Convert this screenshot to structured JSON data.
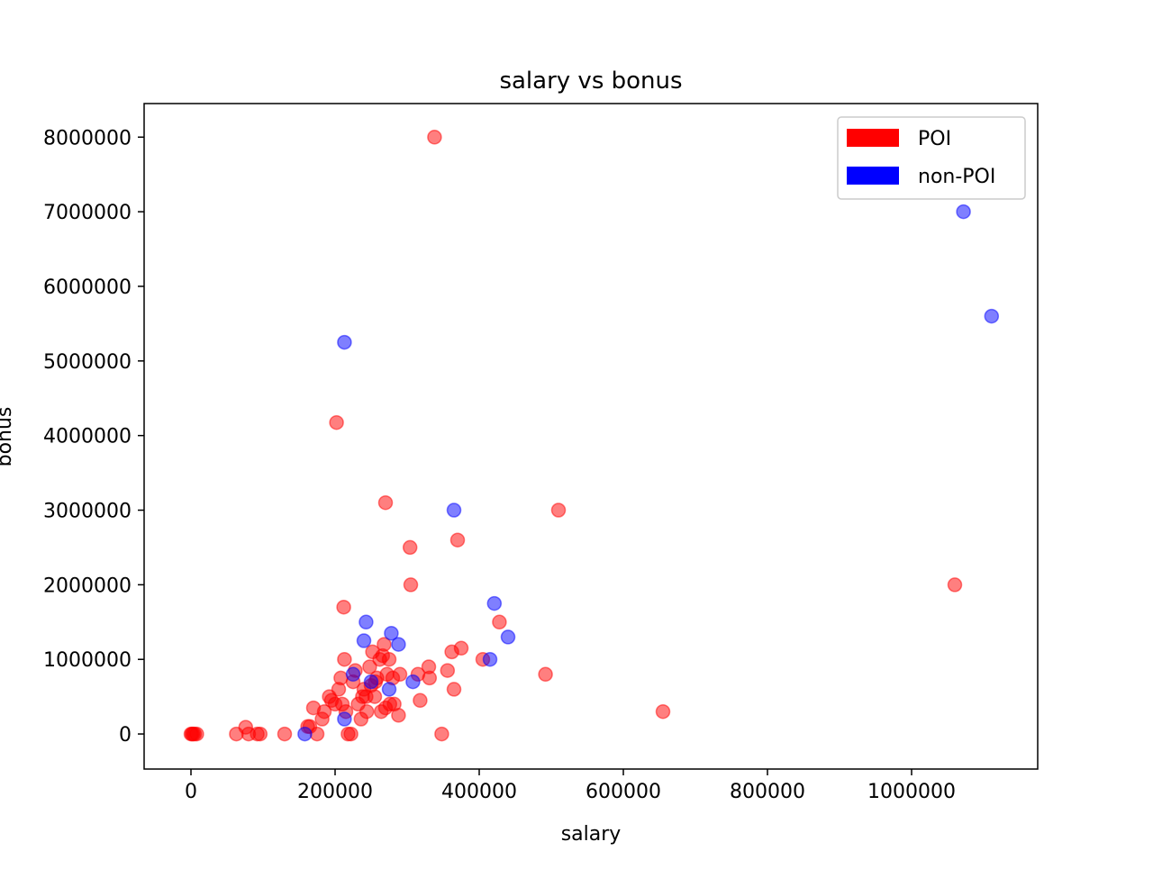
{
  "chart_data": {
    "type": "scatter",
    "title": "salary vs bonus",
    "xlabel": "salary",
    "ylabel": "bonus",
    "xlim": [
      -65000,
      1175000
    ],
    "ylim": [
      -470000,
      8450000
    ],
    "xticks": [
      0,
      200000,
      400000,
      600000,
      800000,
      1000000
    ],
    "xtick_labels": [
      "0",
      "200000",
      "400000",
      "600000",
      "800000",
      "1000000"
    ],
    "yticks": [
      0,
      1000000,
      2000000,
      3000000,
      4000000,
      5000000,
      6000000,
      7000000,
      8000000
    ],
    "ytick_labels": [
      "0",
      "1000000",
      "2000000",
      "3000000",
      "4000000",
      "5000000",
      "6000000",
      "7000000",
      "8000000"
    ],
    "grid": false,
    "legend_position": "top-right",
    "series": [
      {
        "name": "POI",
        "color": "#ff0000",
        "points": [
          [
            0,
            0
          ],
          [
            1500,
            0
          ],
          [
            3000,
            0
          ],
          [
            5000,
            0
          ],
          [
            8000,
            0
          ],
          [
            63000,
            0
          ],
          [
            76000,
            90000
          ],
          [
            80000,
            0
          ],
          [
            92000,
            0
          ],
          [
            96000,
            0
          ],
          [
            130000,
            0
          ],
          [
            162000,
            100000
          ],
          [
            170000,
            350000
          ],
          [
            175000,
            0
          ],
          [
            182000,
            200000
          ],
          [
            185000,
            300000
          ],
          [
            192000,
            500000
          ],
          [
            200000,
            400000
          ],
          [
            205000,
            600000
          ],
          [
            208000,
            750000
          ],
          [
            210000,
            400000
          ],
          [
            213000,
            1000000
          ],
          [
            215000,
            300000
          ],
          [
            218000,
            0
          ],
          [
            222000,
            0
          ],
          [
            225000,
            700000
          ],
          [
            228000,
            850000
          ],
          [
            232000,
            400000
          ],
          [
            236000,
            200000
          ],
          [
            238000,
            500000
          ],
          [
            240000,
            600000
          ],
          [
            244000,
            300000
          ],
          [
            248000,
            900000
          ],
          [
            250000,
            650000
          ],
          [
            252000,
            1100000
          ],
          [
            255000,
            500000
          ],
          [
            258000,
            750000
          ],
          [
            262000,
            1000000
          ],
          [
            264000,
            300000
          ],
          [
            266000,
            1050000
          ],
          [
            268000,
            1200000
          ],
          [
            270000,
            350000
          ],
          [
            272000,
            800000
          ],
          [
            275000,
            1000000
          ],
          [
            276000,
            400000
          ],
          [
            280000,
            750000
          ],
          [
            288000,
            250000
          ],
          [
            290000,
            800000
          ],
          [
            304000,
            2500000
          ],
          [
            305000,
            2000000
          ],
          [
            315000,
            800000
          ],
          [
            318000,
            450000
          ],
          [
            330000,
            900000
          ],
          [
            331000,
            750000
          ],
          [
            338000,
            8000000
          ],
          [
            348000,
            0
          ],
          [
            356000,
            850000
          ],
          [
            362000,
            1100000
          ],
          [
            365000,
            600000
          ],
          [
            370000,
            2600000
          ],
          [
            375000,
            1150000
          ],
          [
            405000,
            1000000
          ],
          [
            428000,
            1500000
          ],
          [
            492000,
            800000
          ],
          [
            510000,
            3000000
          ],
          [
            655000,
            300000
          ],
          [
            1060000,
            2000000
          ],
          [
            212000,
            1700000
          ],
          [
            270000,
            3100000
          ],
          [
            202000,
            4175000
          ],
          [
            165000,
            100000
          ],
          [
            195000,
            450000
          ],
          [
            243000,
            500000
          ],
          [
            256000,
            700000
          ],
          [
            282000,
            400000
          ]
        ]
      },
      {
        "name": "non-POI",
        "color": "#0000ff",
        "points": [
          [
            158000,
            0
          ],
          [
            213000,
            200000
          ],
          [
            213000,
            5250000
          ],
          [
            225000,
            800000
          ],
          [
            240000,
            1250000
          ],
          [
            243000,
            1500000
          ],
          [
            250000,
            700000
          ],
          [
            275000,
            600000
          ],
          [
            278000,
            1350000
          ],
          [
            288000,
            1200000
          ],
          [
            308000,
            700000
          ],
          [
            365000,
            3000000
          ],
          [
            415000,
            1000000
          ],
          [
            421000,
            1750000
          ],
          [
            440000,
            1300000
          ],
          [
            1072000,
            7000000
          ],
          [
            1111000,
            5600000
          ]
        ]
      }
    ]
  }
}
